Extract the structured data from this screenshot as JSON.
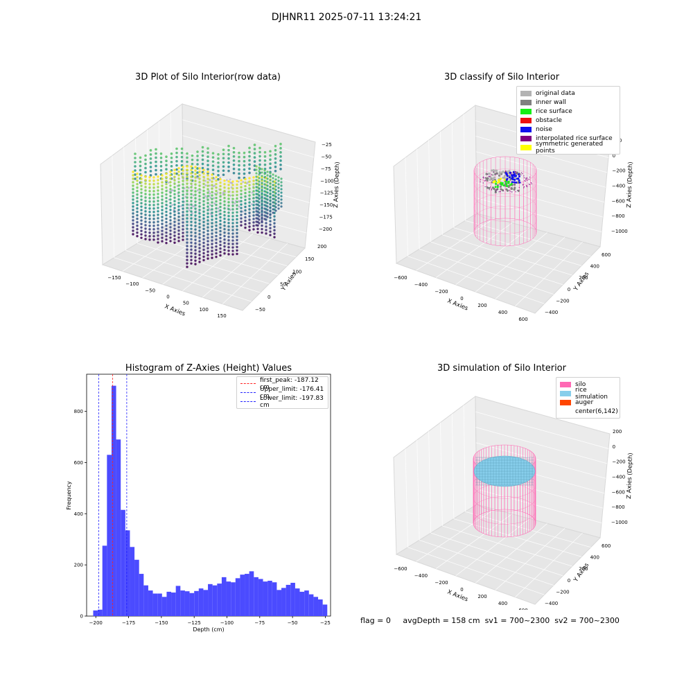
{
  "suptitle": "DJHNR11 2025-07-11 13:24:21",
  "panels": {
    "raw": {
      "title": "3D Plot of Silo Interior(row data)",
      "xlabel": "X Axies",
      "ylabel": "Y Axies",
      "zlabel": "Z Axies (Depth)",
      "xticks": [
        "−150",
        "−100",
        "−50",
        "0",
        "50",
        "100",
        "150"
      ],
      "yticks": [
        "200",
        "150",
        "100",
        "50",
        "0",
        "−50"
      ],
      "zticks": [
        "−25",
        "−50",
        "−75",
        "−100",
        "−125",
        "−150",
        "−175",
        "−200"
      ]
    },
    "classify": {
      "title": "3D classify of Silo Interior",
      "xlabel": "X Axies",
      "ylabel": "Y Axies",
      "zlabel": "Z Axies (Depth)",
      "xticks": [
        "−600",
        "−400",
        "−200",
        "0",
        "200",
        "400",
        "600"
      ],
      "yticks": [
        "600",
        "400",
        "200",
        "0",
        "−200",
        "−400"
      ],
      "zticks": [
        "200",
        "0",
        "−200",
        "−400",
        "−600",
        "−800",
        "−1000"
      ],
      "legend": [
        {
          "label": "original data",
          "color": "#b3b3b3"
        },
        {
          "label": "inner wall",
          "color": "#808080"
        },
        {
          "label": "rice surface",
          "color": "#16f016"
        },
        {
          "label": "obstacle",
          "color": "#ee1111"
        },
        {
          "label": "noise",
          "color": "#1010ee"
        },
        {
          "label": "interpolated rice surface",
          "color": "#800080"
        },
        {
          "label": "symmetric generated points",
          "color": "#ffff00"
        }
      ]
    },
    "simulation": {
      "title": "3D simulation of Silo Interior",
      "xlabel": "X Axies",
      "ylabel": "Y Axies",
      "zlabel": "Z Axies (Depth)",
      "xticks": [
        "−600",
        "−400",
        "−200",
        "0",
        "200",
        "400",
        "600"
      ],
      "yticks": [
        "600",
        "400",
        "200",
        "0",
        "−200",
        "−400"
      ],
      "zticks": [
        "200",
        "0",
        "−200",
        "−400",
        "−600",
        "−800",
        "−1000"
      ],
      "legend": [
        {
          "label": "silo",
          "color": "#ff69b4"
        },
        {
          "label": "rice simulation",
          "color": "#87ceeb"
        },
        {
          "label": "auger",
          "color": "#ff4500"
        },
        {
          "label": "center(6,142)",
          "color": "#ffffff"
        }
      ]
    }
  },
  "footer": {
    "flag": "flag = 0",
    "avg": "avgDepth = 158 cm",
    "sv1": "sv1 = 700~2300",
    "sv2": "sv2 = 700~2300"
  },
  "colors": {
    "hist": "#4b4bff",
    "peak": "#ff2020",
    "limit": "#2020ff",
    "silo": "#ff69b4",
    "rice": "#87ceeb"
  },
  "chart_data": {
    "type": "bar",
    "title": "Histogram of Z-Axies (Height) Values",
    "xlabel": "Depth (cm)",
    "ylabel": "Frequency",
    "xlim": [
      -207,
      -21
    ],
    "ylim": [
      0,
      945
    ],
    "xticks": [
      -200,
      -175,
      -150,
      -125,
      -100,
      -75,
      -50,
      -25
    ],
    "xtick_labels": [
      "−200",
      "−175",
      "−150",
      "−125",
      "−100",
      "−75",
      "−50",
      "−25"
    ],
    "yticks": [
      0,
      200,
      400,
      600,
      800
    ],
    "yticks_labels": [
      "0",
      "200",
      "400",
      "600",
      "800"
    ],
    "bin_edges_start": -202,
    "bin_width": 3.5,
    "values": [
      22,
      25,
      275,
      630,
      900,
      690,
      415,
      335,
      270,
      220,
      165,
      120,
      100,
      88,
      88,
      75,
      95,
      92,
      118,
      100,
      97,
      90,
      98,
      108,
      102,
      125,
      120,
      127,
      152,
      135,
      132,
      148,
      162,
      165,
      175,
      152,
      145,
      135,
      138,
      132,
      102,
      110,
      122,
      130,
      108,
      95,
      100,
      85,
      75,
      65,
      45
    ],
    "lines": [
      {
        "label": "first_peak: -187.12 cm",
        "x": -187.12,
        "color": "#ff2020"
      },
      {
        "label": "Upper_limit: -176.41 cm",
        "x": -176.41,
        "color": "#2020ff"
      },
      {
        "label": "Lower_limit: -197.83 cm",
        "x": -197.83,
        "color": "#2020ff"
      }
    ]
  }
}
